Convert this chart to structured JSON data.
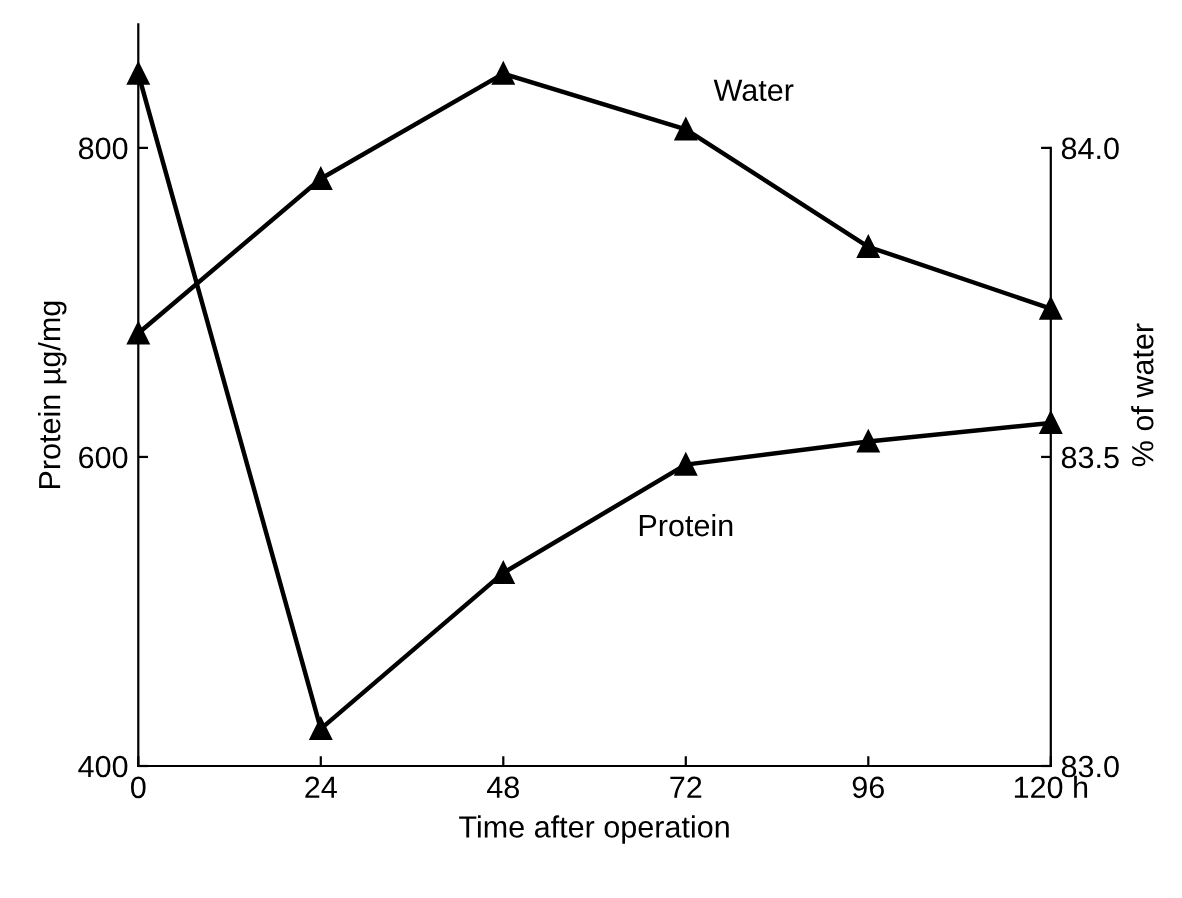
{
  "chart_data": {
    "type": "line",
    "xlabel": "Time after operation",
    "ylabel": "Protein µg/mg",
    "y2label": "% of water",
    "x": [
      0,
      24,
      48,
      72,
      96,
      120
    ],
    "series": [
      {
        "name": "Water",
        "color": "#000000",
        "axis": "y2",
        "values": [
          83.7,
          83.95,
          84.12,
          84.03,
          83.84,
          83.74
        ]
      },
      {
        "name": "Protein",
        "color": "#000000",
        "values": [
          848,
          424,
          525,
          595,
          610,
          622
        ]
      }
    ],
    "xlim": [
      0,
      120
    ],
    "xticks": [
      0,
      24,
      48,
      72,
      96,
      {
        "value": 120,
        "label": "120 h"
      }
    ],
    "ylim": [
      400,
      880
    ],
    "yticks": [
      400,
      600,
      800
    ],
    "y2lim": [
      83.0,
      84.2
    ],
    "y2ticks": [
      {
        "value": 83.0,
        "label": "83.0"
      },
      83.5,
      {
        "value": 84.0,
        "label": "84.0"
      }
    ],
    "marker": "triangle",
    "line_style": "solid",
    "grid": false,
    "legend": false
  }
}
